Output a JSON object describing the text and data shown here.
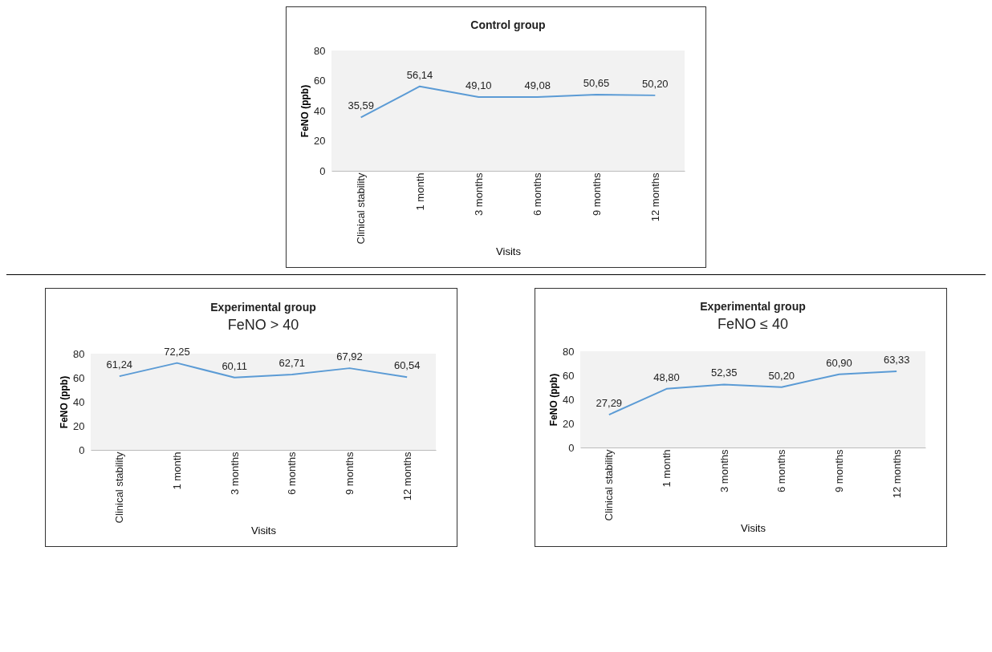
{
  "chart_data": [
    {
      "type": "line",
      "title": "Control group",
      "xlabel": "Visits",
      "ylabel": "FeNO (ppb)",
      "categories": [
        "Clinical stability",
        "1 month",
        "3 months",
        "6 months",
        "9 months",
        "12 months"
      ],
      "series": [
        {
          "color": "#5b9bd5",
          "values": [
            35.59,
            56.14,
            49.1,
            49.08,
            50.65,
            50.2
          ],
          "value_labels": [
            "35,59",
            "56,14",
            "49,10",
            "49,08",
            "50,65",
            "50,20"
          ]
        }
      ],
      "ylim": [
        0,
        80
      ],
      "yticks": [
        0,
        20,
        40,
        60,
        80
      ],
      "grid": false
    },
    {
      "type": "line",
      "title": "Experimental group",
      "subtitle": "FeNO > 40",
      "xlabel": "Visits",
      "ylabel": "FeNO (ppb)",
      "categories": [
        "Clinical stability",
        "1 month",
        "3 months",
        "6 months",
        "9 months",
        "12 months"
      ],
      "series": [
        {
          "color": "#5b9bd5",
          "values": [
            61.24,
            72.25,
            60.11,
            62.71,
            67.92,
            60.54
          ],
          "value_labels": [
            "61,24",
            "72,25",
            "60,11",
            "62,71",
            "67,92",
            "60,54"
          ]
        }
      ],
      "ylim": [
        0,
        80
      ],
      "yticks": [
        0,
        20,
        40,
        60,
        80
      ],
      "grid": false
    },
    {
      "type": "line",
      "title": "Experimental group",
      "subtitle": "FeNO ≤ 40",
      "xlabel": "Visits",
      "ylabel": "FeNO (ppb)",
      "categories": [
        "Clinical stability",
        "1 month",
        "3 months",
        "6 months",
        "9 months",
        "12 months"
      ],
      "series": [
        {
          "color": "#5b9bd5",
          "values": [
            27.29,
            48.8,
            52.35,
            50.2,
            60.9,
            63.33
          ],
          "value_labels": [
            "27,29",
            "48,80",
            "52,35",
            "50,20",
            "60,90",
            "63,33"
          ]
        }
      ],
      "ylim": [
        0,
        80
      ],
      "yticks": [
        0,
        20,
        40,
        60,
        80
      ],
      "grid": false
    }
  ]
}
